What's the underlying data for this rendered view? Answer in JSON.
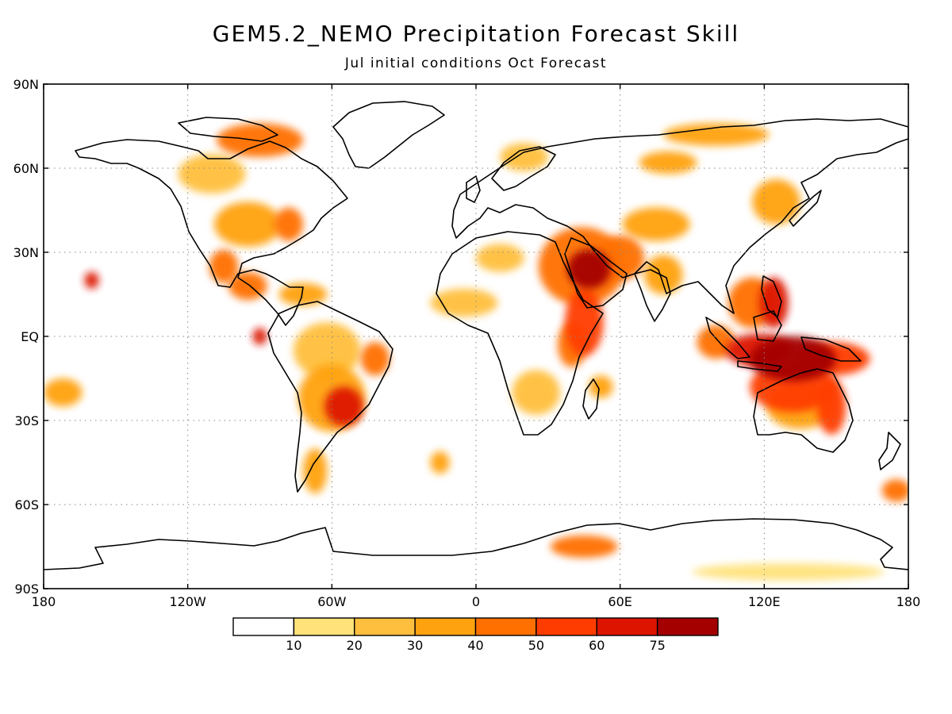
{
  "title": "GEM5.2_NEMO Precipitation Forecast Skill",
  "subtitle": "Jul initial conditions   Oct Forecast",
  "map": {
    "lon_range": [
      -180,
      180
    ],
    "lat_range": [
      -90,
      90
    ],
    "x_ticks": [
      {
        "lon": -180,
        "label": "180"
      },
      {
        "lon": -120,
        "label": "120W"
      },
      {
        "lon": -60,
        "label": "60W"
      },
      {
        "lon": 0,
        "label": "0"
      },
      {
        "lon": 60,
        "label": "60E"
      },
      {
        "lon": 120,
        "label": "120E"
      },
      {
        "lon": 180,
        "label": "180"
      }
    ],
    "y_ticks": [
      {
        "lat": 90,
        "label": "90N"
      },
      {
        "lat": 60,
        "label": "60N"
      },
      {
        "lat": 30,
        "label": "30N"
      },
      {
        "lat": 0,
        "label": "EQ"
      },
      {
        "lat": -30,
        "label": "30S"
      },
      {
        "lat": -60,
        "label": "60S"
      },
      {
        "lat": -90,
        "label": "90S"
      }
    ],
    "gridlines": "dotted"
  },
  "colorbar": {
    "colors": [
      "#ffffff",
      "#ffe27a",
      "#ffbf3e",
      "#ffa20f",
      "#ff7000",
      "#ff3c00",
      "#dd1400",
      "#a40000"
    ],
    "labels": [
      "10",
      "20",
      "30",
      "40",
      "50",
      "60",
      "75"
    ]
  },
  "skill_patches": [
    {
      "region": "Arabian Peninsula",
      "lon": 47,
      "lat": 24,
      "rlon": 9,
      "rlat": 7,
      "level": 7
    },
    {
      "region": "Arabian Peninsula outer",
      "lon": 44,
      "lat": 25,
      "rlon": 18,
      "rlat": 14,
      "level": 4
    },
    {
      "region": "Persian Gulf / Iran",
      "lon": 60,
      "lat": 28,
      "rlon": 10,
      "rlat": 8,
      "level": 4
    },
    {
      "region": "Horn of Africa",
      "lon": 45,
      "lat": 5,
      "rlon": 8,
      "rlat": 12,
      "level": 5
    },
    {
      "region": "East Africa coast",
      "lon": 40,
      "lat": -3,
      "rlon": 6,
      "rlat": 8,
      "level": 4
    },
    {
      "region": "Philippines",
      "lon": 124,
      "lat": 12,
      "rlon": 6,
      "rlat": 9,
      "level": 6
    },
    {
      "region": "South China Sea",
      "lon": 115,
      "lat": 12,
      "rlon": 10,
      "rlat": 9,
      "level": 4
    },
    {
      "region": "Indonesia",
      "lon": 118,
      "lat": -5,
      "rlon": 14,
      "rlat": 6,
      "level": 6
    },
    {
      "region": "Maritime Continent",
      "lon": 132,
      "lat": -8,
      "rlon": 18,
      "rlat": 8,
      "level": 7
    },
    {
      "region": "Western Pacific",
      "lon": 148,
      "lat": -8,
      "rlon": 16,
      "rlat": 6,
      "level": 5
    },
    {
      "region": "North Australia",
      "lon": 132,
      "lat": -18,
      "rlon": 18,
      "rlat": 9,
      "level": 5
    },
    {
      "region": "Central Australia",
      "lon": 135,
      "lat": -25,
      "rlon": 14,
      "rlat": 8,
      "level": 3
    },
    {
      "region": "East Australia",
      "lon": 148,
      "lat": -25,
      "rlon": 6,
      "rlat": 10,
      "level": 5
    },
    {
      "region": "Eastern Indian Ocean",
      "lon": 100,
      "lat": -2,
      "rlon": 8,
      "rlat": 6,
      "level": 4
    },
    {
      "region": "Eastern Brazil",
      "lon": -55,
      "lat": -25,
      "rlon": 8,
      "rlat": 7,
      "level": 6
    },
    {
      "region": "South America interior",
      "lon": -60,
      "lat": -22,
      "rlon": 14,
      "rlat": 12,
      "level": 3
    },
    {
      "region": "Amazon",
      "lon": -62,
      "lat": -5,
      "rlon": 14,
      "rlat": 10,
      "level": 2
    },
    {
      "region": "Northeast Brazil",
      "lon": -42,
      "lat": -8,
      "rlon": 6,
      "rlat": 6,
      "level": 4
    },
    {
      "region": "Patagonia",
      "lon": -67,
      "lat": -48,
      "rlon": 5,
      "rlat": 8,
      "level": 3
    },
    {
      "region": "Central America",
      "lon": -95,
      "lat": 18,
      "rlon": 8,
      "rlat": 5,
      "level": 4
    },
    {
      "region": "Mexico",
      "lon": -105,
      "lat": 25,
      "rlon": 6,
      "rlat": 6,
      "level": 4
    },
    {
      "region": "Caribbean",
      "lon": -72,
      "lat": 15,
      "rlon": 10,
      "rlat": 4,
      "level": 3
    },
    {
      "region": "US Midwest",
      "lon": -95,
      "lat": 40,
      "rlon": 14,
      "rlat": 8,
      "level": 3
    },
    {
      "region": "US East",
      "lon": -78,
      "lat": 40,
      "rlon": 6,
      "rlat": 6,
      "level": 4
    },
    {
      "region": "Canada",
      "lon": -110,
      "lat": 58,
      "rlon": 14,
      "rlat": 7,
      "level": 2
    },
    {
      "region": "Canadian Arctic",
      "lon": -90,
      "lat": 70,
      "rlon": 18,
      "rlat": 6,
      "level": 4
    },
    {
      "region": "Hawaii region",
      "lon": -160,
      "lat": 20,
      "rlon": 3,
      "rlat": 3,
      "level": 6
    },
    {
      "region": "Equatorial E Pacific",
      "lon": -90,
      "lat": 0,
      "rlon": 3,
      "rlat": 3,
      "level": 6
    },
    {
      "region": "South Pacific W",
      "lon": -172,
      "lat": -20,
      "rlon": 8,
      "rlat": 5,
      "level": 3
    },
    {
      "region": "West Africa Sahel",
      "lon": -5,
      "lat": 12,
      "rlon": 14,
      "rlat": 5,
      "level": 2
    },
    {
      "region": "North Africa",
      "lon": 10,
      "lat": 28,
      "rlon": 10,
      "rlat": 5,
      "level": 2
    },
    {
      "region": "Southern Africa",
      "lon": 25,
      "lat": -20,
      "rlon": 10,
      "rlat": 8,
      "level": 2
    },
    {
      "region": "Madagascar",
      "lon": 52,
      "lat": -18,
      "rlon": 5,
      "rlat": 4,
      "level": 3
    },
    {
      "region": "Central Asia",
      "lon": 75,
      "lat": 40,
      "rlon": 14,
      "rlat": 6,
      "level": 3
    },
    {
      "region": "India",
      "lon": 78,
      "lat": 22,
      "rlon": 8,
      "rlat": 7,
      "level": 3
    },
    {
      "region": "Siberia",
      "lon": 80,
      "lat": 62,
      "rlon": 12,
      "rlat": 4,
      "level": 3
    },
    {
      "region": "NE Asia",
      "lon": 125,
      "lat": 48,
      "rlon": 10,
      "rlat": 8,
      "level": 3
    },
    {
      "region": "Arctic Russia",
      "lon": 100,
      "lat": 72,
      "rlon": 22,
      "rlat": 4,
      "level": 3
    },
    {
      "region": "Scandinavia",
      "lon": 20,
      "lat": 64,
      "rlon": 10,
      "rlat": 5,
      "level": 2
    },
    {
      "region": "South Atlantic",
      "lon": -15,
      "lat": -45,
      "rlon": 4,
      "rlat": 4,
      "level": 3
    },
    {
      "region": "Southern Ocean E",
      "lon": 175,
      "lat": -55,
      "rlon": 6,
      "rlat": 4,
      "level": 4
    },
    {
      "region": "Antarctica Dronning Maud",
      "lon": 45,
      "lat": -75,
      "rlon": 14,
      "rlat": 4,
      "level": 4
    },
    {
      "region": "Antarctica East",
      "lon": 130,
      "lat": -84,
      "rlon": 40,
      "rlat": 3,
      "level": 1
    }
  ]
}
